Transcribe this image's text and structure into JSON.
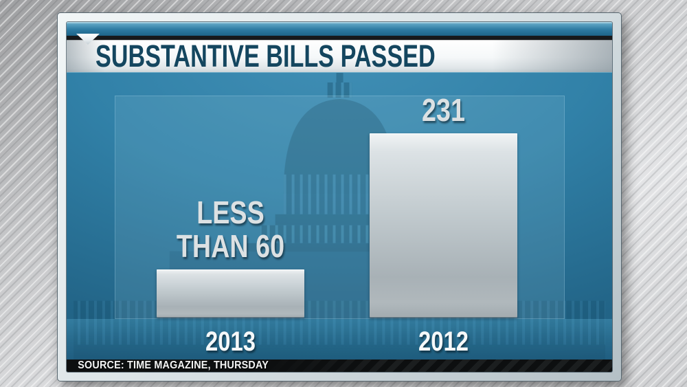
{
  "header": {
    "title": "SUBSTANTIVE BILLS PASSED"
  },
  "source_bar": {
    "text": "SOURCE: TIME MAGAZINE, THURSDAY"
  },
  "chart_data": {
    "type": "bar",
    "title": "SUBSTANTIVE BILLS PASSED",
    "categories": [
      "2013",
      "2012"
    ],
    "values": [
      60,
      231
    ],
    "value_labels": [
      [
        "LESS",
        "THAN 60"
      ],
      [
        "231"
      ]
    ],
    "ylim": [
      0,
      231
    ],
    "grid": false,
    "legend": false,
    "source": "SOURCE: TIME MAGAZINE, THURSDAY",
    "background_watermark": "us-capitol-building"
  },
  "icons": {
    "pointer": "down-triangle",
    "watermark": "us-capitol-building"
  },
  "colors": {
    "chart_blue_center": "#3a87ac",
    "chart_blue_edge": "#1b5475",
    "top_strip_blue": "#2e7ba2",
    "title_text": "#14465f",
    "bar_silver_top": "#f1f4f5",
    "bar_silver_bottom": "#a2abb0",
    "value_label_gray": "#dce1e3",
    "year_white": "#f5f8f9",
    "source_bar_black": "#0d0f10",
    "frame_silver": "#dde5e8"
  }
}
